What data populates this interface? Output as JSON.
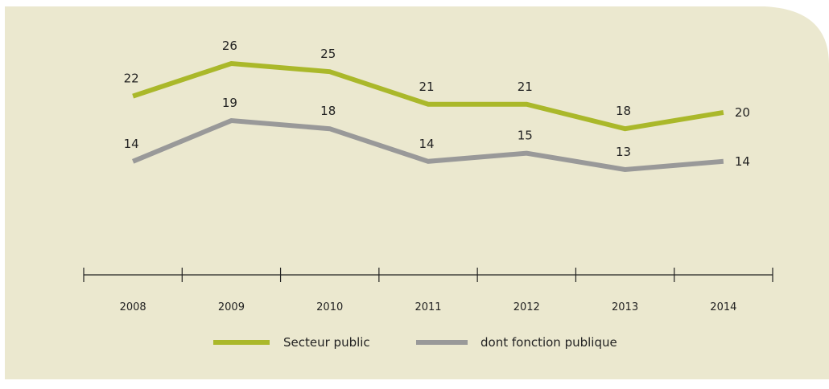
{
  "colors": {
    "background": "#ebe8cf",
    "secteur_public": "#aab82a",
    "fonction_publique": "#999999",
    "axis": "#222222"
  },
  "chart_data": {
    "type": "line",
    "categories": [
      "2008",
      "2009",
      "2010",
      "2011",
      "2012",
      "2013",
      "2014"
    ],
    "series": [
      {
        "name": "Secteur public",
        "values": [
          22,
          26,
          25,
          21,
          21,
          18,
          20
        ]
      },
      {
        "name": "dont fonction publique",
        "values": [
          14,
          19,
          18,
          14,
          15,
          13,
          14
        ]
      }
    ],
    "title": "",
    "xlabel": "",
    "ylabel": "",
    "ylim": [
      0,
      30
    ],
    "grid": false,
    "legend_position": "bottom-center"
  }
}
